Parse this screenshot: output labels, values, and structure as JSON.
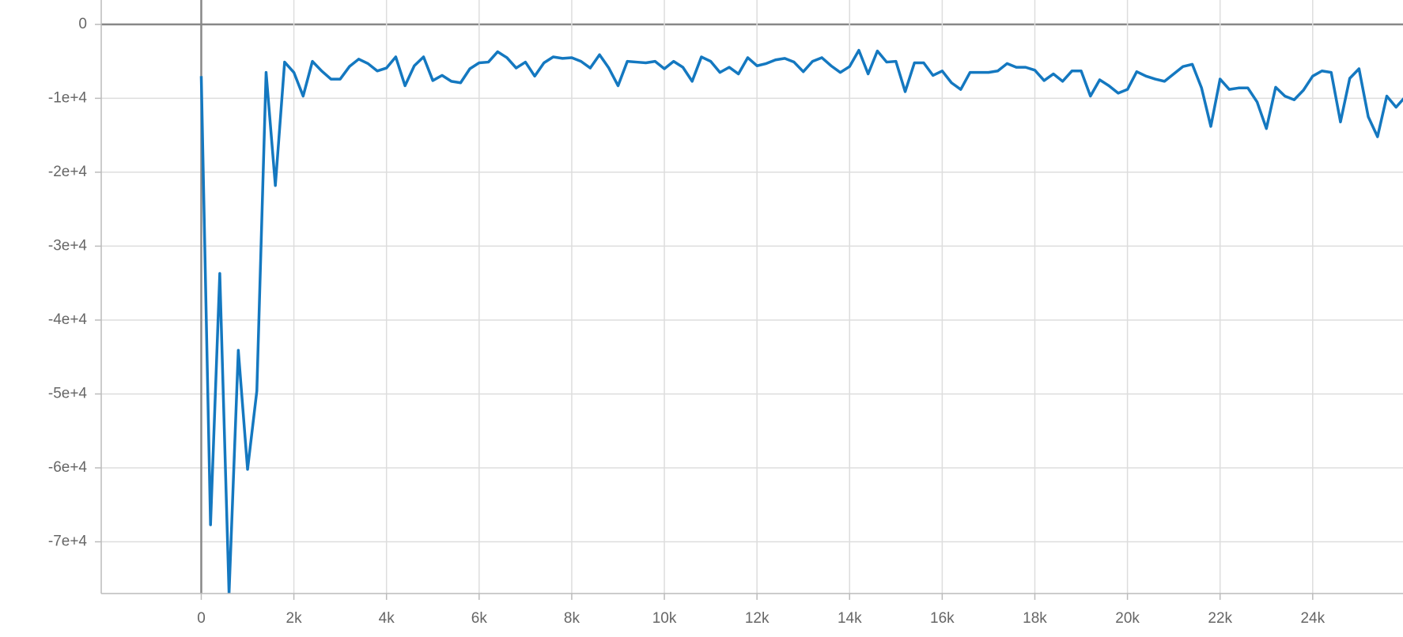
{
  "chart_data": {
    "type": "line",
    "x": [
      0,
      200,
      400,
      600,
      800,
      1000,
      1200,
      1400,
      1600,
      1800,
      2000,
      2200,
      2400,
      2600,
      2800,
      3000,
      3200,
      3400,
      3600,
      3800,
      4000,
      4200,
      4400,
      4600,
      4800,
      5000,
      5200,
      5400,
      5600,
      5800,
      6000,
      6200,
      6400,
      6600,
      6800,
      7000,
      7200,
      7400,
      7600,
      7800,
      8000,
      8200,
      8400,
      8600,
      8800,
      9000,
      9200,
      9400,
      9600,
      9800,
      10000,
      10200,
      10400,
      10600,
      10800,
      11000,
      11200,
      11400,
      11600,
      11800,
      12000,
      12200,
      12400,
      12600,
      12800,
      13000,
      13200,
      13400,
      13600,
      13800,
      14000,
      14200,
      14400,
      14600,
      14800,
      15000,
      15200,
      15400,
      15600,
      15800,
      16000,
      16200,
      16400,
      16600,
      16800,
      17000,
      17200,
      17400,
      17600,
      17800,
      18000,
      18200,
      18400,
      18600,
      18800,
      19000,
      19200,
      19400,
      19600,
      19800,
      20000,
      20200,
      20400,
      20600,
      20800,
      21000,
      21200,
      21400,
      21600,
      21800,
      22000,
      22200,
      22400,
      22600,
      22800,
      23000,
      23200,
      23400,
      23600,
      23800,
      24000,
      24200,
      24400,
      24600,
      24800,
      25000,
      25200,
      25400,
      25600,
      25800,
      26000
    ],
    "series": [
      {
        "color": "#1478c0",
        "values": [
          -7000,
          -67700,
          -33700,
          -77000,
          -44100,
          -60200,
          -49600,
          -6500,
          -21800,
          -5100,
          -6500,
          -9700,
          -5000,
          -6300,
          -7400,
          -7400,
          -5700,
          -4700,
          -5300,
          -6300,
          -5900,
          -4400,
          -8300,
          -5600,
          -4400,
          -7600,
          -6900,
          -7700,
          -7900,
          -6000,
          -5200,
          -5100,
          -3700,
          -4500,
          -5900,
          -5100,
          -7000,
          -5200,
          -4400,
          -4600,
          -4500,
          -5000,
          -5900,
          -4100,
          -5900,
          -8300,
          -5000,
          -5100,
          -5200,
          -5000,
          -6000,
          -5000,
          -5800,
          -7700,
          -4400,
          -5000,
          -6500,
          -5800,
          -6700,
          -4500,
          -5600,
          -5300,
          -4800,
          -4600,
          -5100,
          -6400,
          -5000,
          -4500,
          -5600,
          -6500,
          -5700,
          -3500,
          -6700,
          -3600,
          -5100,
          -5000,
          -9100,
          -5200,
          -5200,
          -6900,
          -6300,
          -7900,
          -8800,
          -6500,
          -6500,
          -6500,
          -6300,
          -5300,
          -5800,
          -5800,
          -6200,
          -7600,
          -6700,
          -7700,
          -6300,
          -6300,
          -9700,
          -7500,
          -8300,
          -9300,
          -8800,
          -6400,
          -7000,
          -7400,
          -7700,
          -6700,
          -5700,
          -5400,
          -8600,
          -13800,
          -7400,
          -8800,
          -8600,
          -8600,
          -10500,
          -14100,
          -8500,
          -9700,
          -10200,
          -8900,
          -7000,
          -6300,
          -6500,
          -13200,
          -7300,
          -6000,
          -12500,
          -15200,
          -9700,
          -11200,
          -9800
        ]
      }
    ],
    "xlim": [
      -2160,
      25950
    ],
    "ylim": [
      -77000,
      3300
    ],
    "xticks": [
      0,
      {
        "value": 2000,
        "label": "2k"
      },
      {
        "value": 4000,
        "label": "4k"
      },
      {
        "value": 6000,
        "label": "6k"
      },
      {
        "value": 8000,
        "label": "8k"
      },
      {
        "value": 10000,
        "label": "10k"
      },
      {
        "value": 12000,
        "label": "12k"
      },
      {
        "value": 14000,
        "label": "14k"
      },
      {
        "value": 16000,
        "label": "16k"
      },
      {
        "value": 18000,
        "label": "18k"
      },
      {
        "value": 20000,
        "label": "20k"
      },
      {
        "value": 22000,
        "label": "22k"
      },
      {
        "value": 24000,
        "label": "24k"
      }
    ],
    "yticks": [
      0,
      {
        "value": -10000,
        "label": "-1e+4"
      },
      {
        "value": -20000,
        "label": "-2e+4"
      },
      {
        "value": -30000,
        "label": "-3e+4"
      },
      {
        "value": -40000,
        "label": "-4e+4"
      },
      {
        "value": -50000,
        "label": "-5e+4"
      },
      {
        "value": -60000,
        "label": "-6e+4"
      },
      {
        "value": -70000,
        "label": "-7e+4"
      }
    ],
    "grid": true
  }
}
